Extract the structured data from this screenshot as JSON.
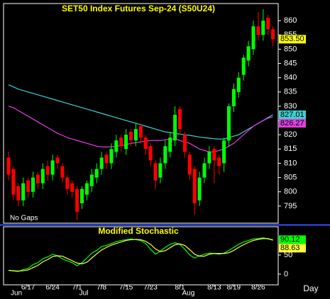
{
  "chart_data": [
    {
      "type": "candlestick",
      "title": "SET50 Index Futures Sep-24 (S50U24)",
      "annotation": "No Gaps",
      "categories": [
        null,
        null,
        null,
        null,
        "6/17",
        null,
        null,
        null,
        null,
        "6/24",
        null,
        null,
        null,
        null,
        "7/1",
        null,
        null,
        null,
        null,
        "7/8",
        null,
        null,
        null,
        null,
        "7/15",
        null,
        null,
        null,
        null,
        "7/23",
        null,
        null,
        null,
        null,
        null,
        "8/1",
        null,
        null,
        null,
        null,
        null,
        null,
        "8/13",
        null,
        null,
        null,
        "8/19",
        null,
        null,
        null,
        null,
        "8/26",
        null,
        null,
        null
      ],
      "month_labels": [
        "Jun",
        null,
        null,
        null,
        null,
        null,
        null,
        null,
        null,
        null,
        null,
        null,
        null,
        null,
        "Jul",
        null,
        null,
        null,
        null,
        null,
        null,
        null,
        null,
        null,
        null,
        null,
        null,
        null,
        null,
        null,
        null,
        null,
        null,
        null,
        null,
        "Aug",
        null,
        null,
        null,
        null,
        null,
        null,
        null,
        null,
        null,
        null,
        null,
        null,
        null,
        null,
        null,
        null,
        null,
        null,
        null
      ],
      "open": [
        812,
        808,
        802,
        797,
        804,
        800,
        806,
        803,
        809,
        806,
        812,
        809,
        805,
        803,
        801,
        796,
        799,
        802,
        805,
        808,
        813,
        810,
        814,
        819,
        815,
        821,
        818,
        823,
        819,
        816,
        810,
        805,
        810,
        814,
        818,
        829,
        820,
        813,
        808,
        797,
        805,
        810,
        815,
        812,
        810,
        818,
        830,
        835,
        841,
        846,
        850,
        858,
        855,
        861,
        857
      ],
      "high": [
        814,
        809,
        803,
        805,
        805,
        807,
        807,
        810,
        811,
        813,
        813,
        810,
        806,
        804,
        802,
        802,
        804,
        808,
        810,
        814,
        814,
        817,
        820,
        820,
        822,
        822,
        824,
        824,
        820,
        817,
        811,
        812,
        818,
        821,
        830,
        830,
        821,
        814,
        809,
        807,
        812,
        816,
        816,
        813,
        819,
        831,
        838,
        842,
        848,
        853,
        860,
        863,
        864,
        862,
        858
      ],
      "low": [
        804,
        797,
        795,
        795,
        798,
        798,
        801,
        801,
        804,
        804,
        808,
        803,
        799,
        798,
        790,
        794,
        797,
        800,
        803,
        806,
        808,
        808,
        812,
        814,
        813,
        816,
        816,
        817,
        813,
        809,
        801,
        803,
        808,
        812,
        816,
        820,
        812,
        804,
        792,
        795,
        803,
        808,
        803,
        806,
        807,
        816,
        828,
        833,
        839,
        844,
        848,
        853,
        853,
        855,
        851
      ],
      "close": [
        806,
        799,
        797,
        803,
        800,
        805,
        803,
        808,
        806,
        811,
        810,
        805,
        801,
        800,
        793,
        801,
        803,
        806,
        808,
        812,
        810,
        815,
        818,
        816,
        820,
        818,
        822,
        819,
        815,
        811,
        804,
        810,
        816,
        819,
        827,
        822,
        814,
        806,
        796,
        805,
        810,
        814,
        811,
        809,
        818,
        830,
        836,
        840,
        847,
        851,
        858,
        855,
        860,
        857,
        853.5
      ],
      "last_label": "853.50",
      "up_color": "#00ff00",
      "down_color": "#ff0000",
      "last_color": "#ffff00",
      "series": [
        {
          "color": "#40d0d0",
          "values": [
            837.5,
            836.8,
            836,
            835.5,
            835,
            834.5,
            834,
            833.5,
            833,
            832.5,
            832,
            831.5,
            831,
            830.5,
            830,
            829.5,
            829,
            828.5,
            828,
            827.5,
            827,
            826.5,
            826,
            825.5,
            825,
            824.5,
            824,
            823.5,
            823,
            822.5,
            822,
            821.5,
            821,
            820.8,
            820.5,
            820.2,
            820,
            819.8,
            819.5,
            819.2,
            819,
            818.8,
            818.6,
            818.5,
            818.5,
            819,
            819.5,
            820,
            821,
            822,
            823,
            824,
            825,
            826,
            827.01
          ]
        },
        {
          "color": "#e040e0",
          "values": [
            830,
            829.5,
            828.5,
            827.5,
            826.5,
            825.5,
            824.5,
            823.5,
            822.5,
            821.5,
            820.5,
            819.8,
            819,
            818.5,
            818,
            817.5,
            817,
            816.5,
            816,
            815.8,
            815.7,
            815.8,
            816,
            816.2,
            816.5,
            817,
            817.2,
            817.5,
            817.8,
            818,
            818,
            818,
            818.2,
            818.5,
            818.5,
            818,
            817.5,
            817,
            816,
            815,
            814.5,
            814,
            814,
            814.5,
            815,
            816,
            817,
            818.5,
            820,
            821.5,
            823,
            824,
            825,
            825.8,
            826.27
          ]
        }
      ],
      "ylim": [
        789,
        866
      ],
      "yticks": [
        795,
        800,
        805,
        810,
        815,
        820,
        825,
        830,
        835,
        840,
        845,
        850,
        855,
        860
      ]
    },
    {
      "type": "line",
      "title": "Modified Stochastic",
      "xlabel": "Day",
      "series": [
        {
          "color": "#00ff00",
          "values": [
            10,
            8,
            7,
            12,
            15,
            25,
            30,
            40,
            45,
            52,
            48,
            40,
            35,
            30,
            22,
            30,
            42,
            55,
            62,
            72,
            75,
            80,
            85,
            88,
            90,
            92,
            90,
            88,
            80,
            65,
            52,
            60,
            70,
            78,
            82,
            78,
            65,
            50,
            42,
            48,
            52,
            55,
            54,
            52,
            55,
            62,
            70,
            78,
            84,
            88,
            92,
            93,
            95,
            92,
            90.12
          ]
        },
        {
          "color": "#ffff40",
          "values": [
            10,
            9,
            8,
            9,
            11,
            17,
            23,
            32,
            38,
            46,
            48,
            47,
            41,
            35,
            29,
            27,
            31,
            42,
            53,
            63,
            70,
            76,
            80,
            84,
            88,
            90,
            91,
            90,
            86,
            78,
            66,
            59,
            61,
            69,
            77,
            79,
            75,
            64,
            52,
            47,
            47,
            52,
            54,
            54,
            54,
            56,
            62,
            70,
            77,
            83,
            88,
            91,
            93,
            93,
            88.63
          ]
        }
      ],
      "ylim": [
        -28,
        124
      ],
      "yticks": [
        0,
        50
      ]
    }
  ]
}
